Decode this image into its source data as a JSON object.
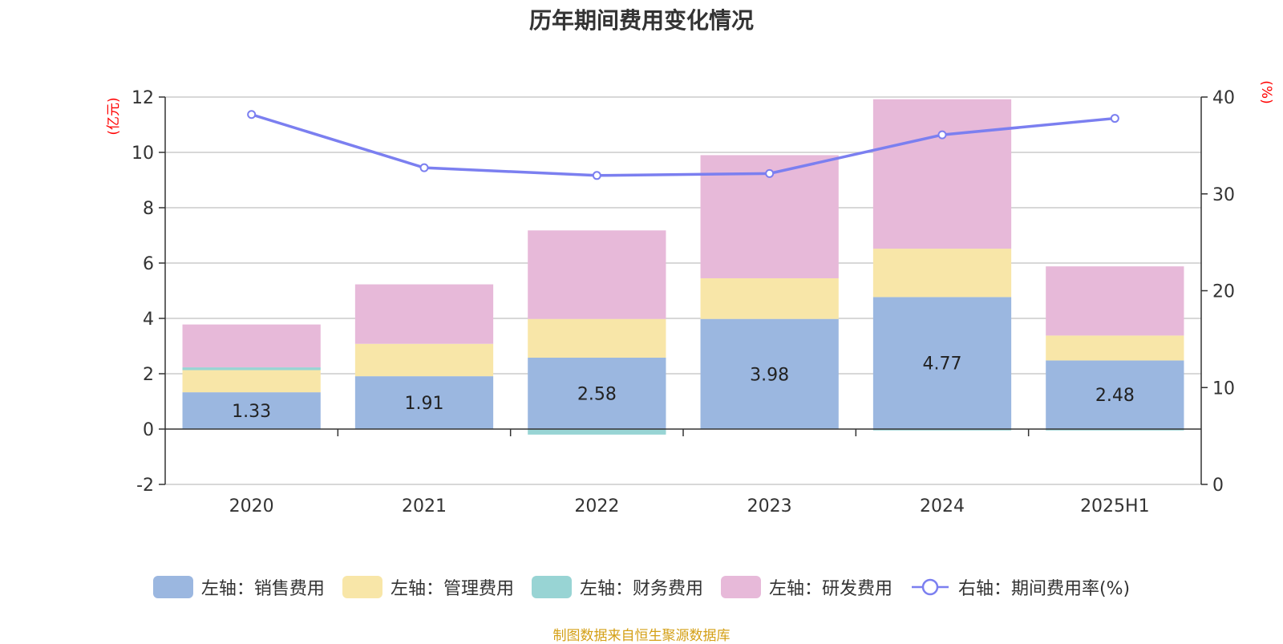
{
  "chart_data": {
    "type": "bar",
    "title": "历年期间费用变化情况",
    "categories": [
      "2020",
      "2021",
      "2022",
      "2023",
      "2024",
      "2025H1"
    ],
    "stacked": true,
    "series": [
      {
        "name": "左轴：销售费用",
        "axis": "left",
        "type": "bar",
        "color": "#9bb7e0",
        "values": [
          1.33,
          1.91,
          2.58,
          3.98,
          4.77,
          2.48
        ],
        "labels": [
          "1.33",
          "1.91",
          "2.58",
          "3.98",
          "4.77",
          "2.48"
        ]
      },
      {
        "name": "左轴：管理费用",
        "axis": "left",
        "type": "bar",
        "color": "#f8e6a8",
        "values": [
          0.8,
          1.17,
          1.4,
          1.47,
          1.75,
          0.9
        ]
      },
      {
        "name": "左轴：财务费用",
        "axis": "left",
        "type": "bar",
        "color": "#98d4d4",
        "values": [
          0.1,
          0.0,
          -0.2,
          0.0,
          -0.05,
          -0.05
        ]
      },
      {
        "name": "左轴：研发费用",
        "axis": "left",
        "type": "bar",
        "color": "#e7b9d9",
        "values": [
          1.55,
          2.15,
          3.2,
          4.45,
          5.4,
          2.5
        ]
      },
      {
        "name": "右轴：期间费用率(%)",
        "axis": "right",
        "type": "line",
        "color": "#7b7ff0",
        "values": [
          38.2,
          32.7,
          31.9,
          32.1,
          36.1,
          37.8
        ]
      }
    ],
    "left_axis": {
      "unit": "(亿元)",
      "ylim": [
        -2,
        12
      ],
      "ticks": [
        "-2",
        "0",
        "2",
        "4",
        "6",
        "8",
        "10",
        "12"
      ]
    },
    "right_axis": {
      "unit": "(%)",
      "ylim": [
        0,
        40
      ],
      "ticks": [
        "0",
        "10",
        "20",
        "30",
        "40"
      ]
    },
    "grid": true,
    "legend_position": "bottom"
  },
  "footer": {
    "source": "制图数据来自恒生聚源数据库"
  }
}
